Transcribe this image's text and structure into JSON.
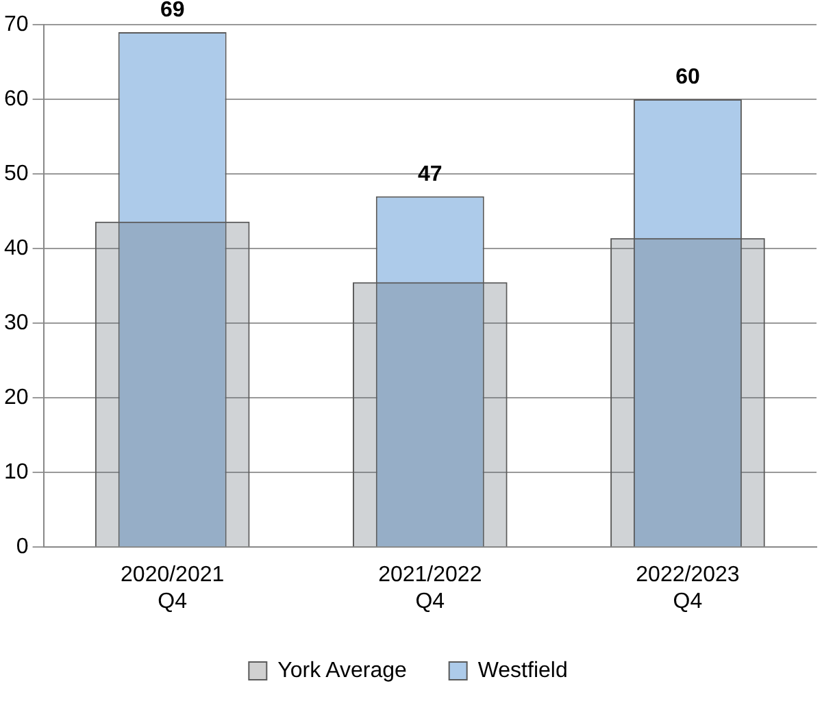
{
  "chart_data": {
    "type": "bar",
    "categories": [
      "2020/2021\nQ4",
      "2021/2022\nQ4",
      "2022/2023\nQ4"
    ],
    "series": [
      {
        "name": "York Average",
        "color": "#d0d0d0",
        "values": [
          43.6,
          35.5,
          41.4
        ]
      },
      {
        "name": "Westfield",
        "color": "#adcbea",
        "values": [
          69,
          47,
          60
        ],
        "value_labels": [
          "69",
          "47",
          "60"
        ]
      }
    ],
    "ylim": [
      0,
      70
    ],
    "yticks": [
      0,
      10,
      20,
      30,
      40,
      50,
      60,
      70
    ],
    "grid": "y",
    "legend": "bottom"
  }
}
